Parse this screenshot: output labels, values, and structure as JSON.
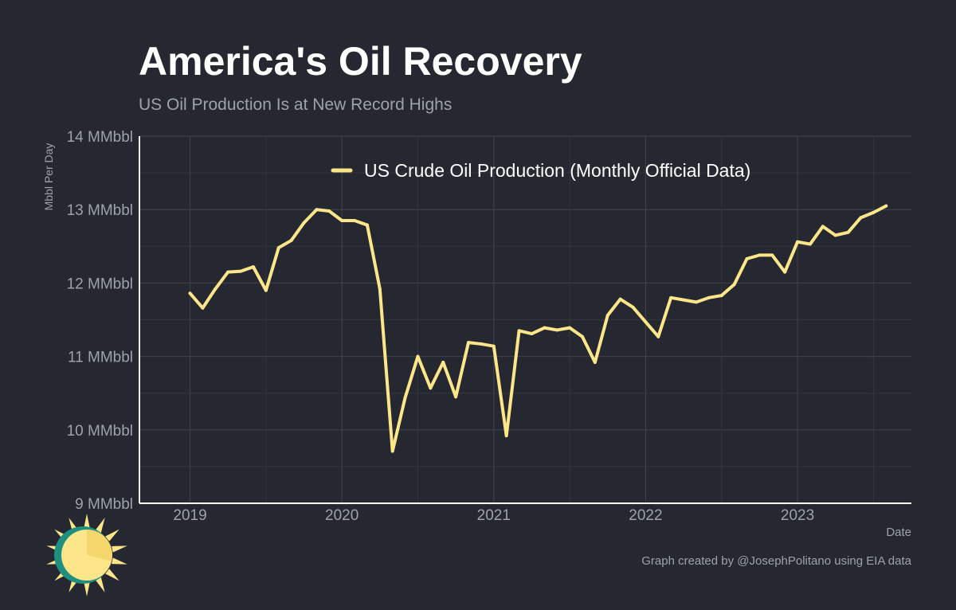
{
  "chart_data": {
    "type": "line",
    "title": "America's Oil Recovery",
    "subtitle": "US Oil Production Is at New Record Highs",
    "ylabel": "Mbbl Per Day",
    "xlabel": "Date",
    "ylim": [
      9,
      14
    ],
    "xlim": [
      "2018-09",
      "2023-10"
    ],
    "grid": true,
    "legend_position": "top-center",
    "ytick_labels": [
      "9 MMbbl",
      "10 MMbbl",
      "11 MMbbl",
      "12 MMbbl",
      "13 MMbbl",
      "14 MMbbl"
    ],
    "yticks": [
      9,
      10,
      11,
      12,
      13,
      14
    ],
    "xtick_labels": [
      "2019",
      "2020",
      "2021",
      "2022",
      "2023"
    ],
    "xticks": [
      "2019-01",
      "2020-01",
      "2021-01",
      "2022-01",
      "2023-01"
    ],
    "series": [
      {
        "name": "US Crude Oil Production (Monthly Official Data)",
        "color": "#fde68a",
        "x": [
          "2019-01",
          "2019-02",
          "2019-03",
          "2019-04",
          "2019-05",
          "2019-06",
          "2019-07",
          "2019-08",
          "2019-09",
          "2019-10",
          "2019-11",
          "2019-12",
          "2020-01",
          "2020-02",
          "2020-03",
          "2020-04",
          "2020-05",
          "2020-06",
          "2020-07",
          "2020-08",
          "2020-09",
          "2020-10",
          "2020-11",
          "2020-12",
          "2021-01",
          "2021-02",
          "2021-03",
          "2021-04",
          "2021-05",
          "2021-06",
          "2021-07",
          "2021-08",
          "2021-09",
          "2021-10",
          "2021-11",
          "2021-12",
          "2022-01",
          "2022-02",
          "2022-03",
          "2022-04",
          "2022-05",
          "2022-06",
          "2022-07",
          "2022-08",
          "2022-09",
          "2022-10",
          "2022-11",
          "2022-12",
          "2023-01",
          "2023-02",
          "2023-03",
          "2023-04",
          "2023-05",
          "2023-06",
          "2023-07",
          "2023-08"
        ],
        "values": [
          11.86,
          11.66,
          11.92,
          12.15,
          12.16,
          12.22,
          11.9,
          12.48,
          12.58,
          12.82,
          13.0,
          12.98,
          12.85,
          12.85,
          12.79,
          11.92,
          9.71,
          10.44,
          11.0,
          10.57,
          10.92,
          10.45,
          11.19,
          11.17,
          11.14,
          9.92,
          11.35,
          11.31,
          11.39,
          11.36,
          11.39,
          11.27,
          10.92,
          11.56,
          11.78,
          11.67,
          11.47,
          11.27,
          11.8,
          11.77,
          11.74,
          11.8,
          11.83,
          11.98,
          12.33,
          12.38,
          12.38,
          12.15,
          12.56,
          12.53,
          12.77,
          12.65,
          12.69,
          12.89,
          12.96,
          13.05
        ]
      }
    ]
  },
  "caption": "Graph created by @JosephPolitano using EIA data",
  "colors": {
    "background": "#252830",
    "line": "#fde68a",
    "axis": "#ffffff"
  },
  "logo": {
    "icon": "sun-logo-icon"
  }
}
